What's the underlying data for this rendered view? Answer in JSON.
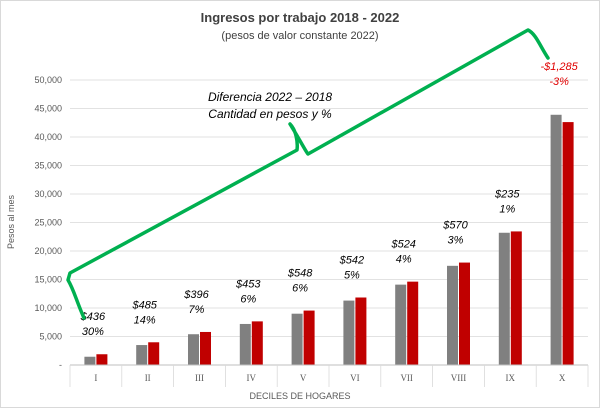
{
  "chart_data": {
    "type": "bar",
    "title": "Ingresos por trabajo 2018 - 2022",
    "subtitle": "(pesos de valor constante 2022)",
    "xlabel": "DECILES DE HOGARES",
    "ylabel": "Pesos al mes",
    "ylim": [
      0,
      50000
    ],
    "yticks": [
      "-",
      "5,000",
      "10,000",
      "15,000",
      "20,000",
      "25,000",
      "30,000",
      "35,000",
      "40,000",
      "45,000",
      "50,000"
    ],
    "ytick_values": [
      0,
      5000,
      10000,
      15000,
      20000,
      25000,
      30000,
      35000,
      40000,
      45000,
      50000
    ],
    "grid": true,
    "legend_position": "top",
    "categories": [
      "I",
      "II",
      "III",
      "IV",
      "V",
      "VI",
      "VII",
      "VIII",
      "IX",
      "X"
    ],
    "series": [
      {
        "name": "2018",
        "color": "#808080",
        "values": [
          1450,
          3500,
          5400,
          7200,
          9000,
          11300,
          14100,
          17400,
          23200,
          43900
        ]
      },
      {
        "name": "2022",
        "color": "#c00000",
        "values": [
          1886,
          3985,
          5796,
          7653,
          9548,
          11842,
          14624,
          17970,
          23435,
          42615
        ]
      }
    ],
    "annotations": [
      {
        "amount": "$436",
        "percent": "30%",
        "negative": false
      },
      {
        "amount": "$485",
        "percent": "14%",
        "negative": false
      },
      {
        "amount": "$396",
        "percent": "7%",
        "negative": false
      },
      {
        "amount": "$453",
        "percent": "6%",
        "negative": false
      },
      {
        "amount": "$548",
        "percent": "6%",
        "negative": false
      },
      {
        "amount": "$542",
        "percent": "5%",
        "negative": false
      },
      {
        "amount": "$524",
        "percent": "4%",
        "negative": false
      },
      {
        "amount": "$570",
        "percent": "3%",
        "negative": false
      },
      {
        "amount": "$235",
        "percent": "1%",
        "negative": false
      },
      {
        "amount": "-$1,285",
        "percent": "-3%",
        "negative": true
      }
    ],
    "callout": {
      "line1": "Diferencia 2022 – 2018",
      "line2": "Cantidad en pesos y %",
      "color": "#00b050"
    }
  }
}
